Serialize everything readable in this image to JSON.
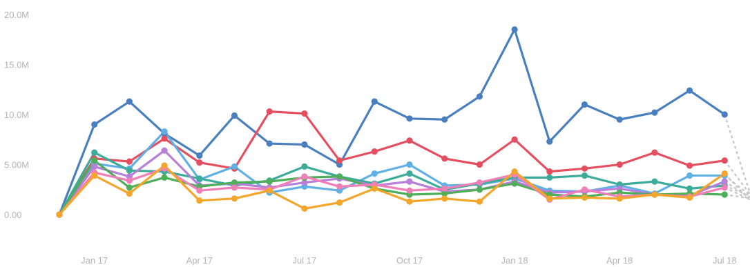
{
  "chart_data": {
    "type": "line",
    "title": "",
    "xlabel": "",
    "ylabel": "",
    "grid": false,
    "legend": "none",
    "ylim": [
      0,
      20000000
    ],
    "y_ticks": [
      0,
      5000000,
      10000000,
      15000000,
      20000000
    ],
    "y_tick_labels": [
      "0.00",
      "5.00M",
      "10.0M",
      "15.0M",
      "20.0M"
    ],
    "x": [
      "Dec 16",
      "Jan 17",
      "Feb 17",
      "Mar 17",
      "Apr 17",
      "May 17",
      "Jun 17",
      "Jul 17",
      "Aug 17",
      "Sep 17",
      "Oct 17",
      "Nov 17",
      "Dec 17",
      "Jan 18",
      "Feb 18",
      "Mar 18",
      "Apr 18",
      "May 18",
      "Jun 18",
      "Jul 18"
    ],
    "x_tick_labels": [
      {
        "x": "Jan 17",
        "label": "Jan 17"
      },
      {
        "x": "Apr 17",
        "label": "Apr 17"
      },
      {
        "x": "Jul 17",
        "label": "Jul 17"
      },
      {
        "x": "Oct 17",
        "label": "Oct 17"
      },
      {
        "x": "Jan 18",
        "label": "Jan 18"
      },
      {
        "x": "Apr 18",
        "label": "Apr 18"
      },
      {
        "x": "Jul 18",
        "label": "Jul 18"
      }
    ],
    "series": [
      {
        "color": "#4a7fbf",
        "values": [
          0,
          9000000,
          11300000,
          8100000,
          5900000,
          9900000,
          7100000,
          7000000,
          5000000,
          11300000,
          9600000,
          9500000,
          11800000,
          18500000,
          7300000,
          11000000,
          9500000,
          10200000,
          12400000,
          10000000
        ]
      },
      {
        "color": "#e54e5e",
        "values": [
          0,
          5600000,
          5300000,
          7600000,
          5200000,
          4600000,
          10300000,
          10100000,
          5400000,
          6300000,
          7400000,
          5600000,
          5000000,
          7500000,
          4300000,
          4600000,
          5000000,
          6200000,
          4900000,
          5400000
        ]
      },
      {
        "color": "#5fb0e4",
        "values": [
          0,
          5100000,
          4600000,
          8300000,
          3500000,
          4800000,
          2200000,
          2800000,
          2400000,
          4100000,
          5000000,
          2900000,
          3000000,
          3600000,
          2400000,
          2300000,
          2900000,
          2100000,
          3900000,
          3900000
        ]
      },
      {
        "color": "#3cab9a",
        "values": [
          0,
          6200000,
          4400000,
          4300000,
          3600000,
          2900000,
          3400000,
          4800000,
          3800000,
          3100000,
          4100000,
          2500000,
          3100000,
          3700000,
          3700000,
          3900000,
          3000000,
          3300000,
          2600000,
          2900000
        ]
      },
      {
        "color": "#b87fd9",
        "values": [
          0,
          4800000,
          3800000,
          6400000,
          2900000,
          3100000,
          2700000,
          3200000,
          3600000,
          2900000,
          3300000,
          2300000,
          2500000,
          3300000,
          2200000,
          2300000,
          2600000,
          2000000,
          1900000,
          3300000
        ]
      },
      {
        "color": "#4fae5a",
        "values": [
          0,
          5400000,
          2700000,
          3700000,
          2800000,
          3200000,
          3300000,
          3700000,
          3800000,
          2600000,
          2000000,
          2100000,
          2500000,
          3100000,
          2000000,
          1800000,
          2200000,
          2000000,
          2100000,
          2000000
        ]
      },
      {
        "color": "#f07fb8",
        "values": [
          0,
          4200000,
          3400000,
          4600000,
          2400000,
          2700000,
          2500000,
          3800000,
          2800000,
          3000000,
          2400000,
          2600000,
          3200000,
          4000000,
          1500000,
          2500000,
          1800000,
          2000000,
          1800000,
          2700000
        ]
      },
      {
        "color": "#f4a52a",
        "values": [
          0,
          3900000,
          2100000,
          4900000,
          1400000,
          1600000,
          2400000,
          600000,
          1200000,
          2600000,
          1300000,
          1600000,
          1300000,
          4300000,
          1600000,
          1700000,
          1600000,
          2000000,
          1700000,
          4100000
        ]
      }
    ]
  }
}
